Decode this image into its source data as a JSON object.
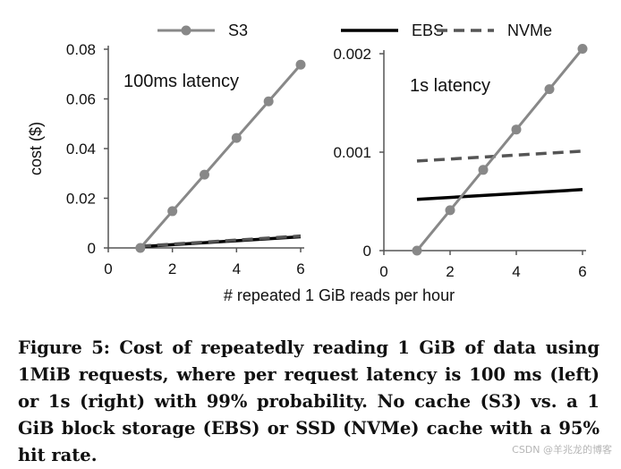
{
  "chart_data": [
    {
      "type": "line",
      "annotation": "100ms latency",
      "xlabel": "# repeated 1 GiB reads per hour",
      "ylabel": "cost ($)",
      "xlim": [
        0,
        6
      ],
      "ylim": [
        0,
        0.08
      ],
      "x_ticks": [
        "0",
        "2",
        "4",
        "6"
      ],
      "y_ticks": [
        "0",
        "0.02",
        "0.04",
        "0.06",
        "0.08"
      ],
      "series": [
        {
          "name": "S3",
          "color": "#888888",
          "style": "solid-marker",
          "x": [
            1,
            2,
            3,
            4,
            5,
            6
          ],
          "y": [
            0,
            0.0148,
            0.0295,
            0.0443,
            0.059,
            0.0738
          ]
        },
        {
          "name": "EBS",
          "color": "#000000",
          "style": "solid",
          "x": [
            1,
            6
          ],
          "y": [
            0.0005,
            0.0045
          ]
        },
        {
          "name": "NVMe",
          "color": "#555555",
          "style": "dashed",
          "x": [
            1,
            6
          ],
          "y": [
            0.0007,
            0.0048
          ]
        }
      ]
    },
    {
      "type": "line",
      "annotation": "1s latency",
      "xlabel": "",
      "ylabel": "",
      "xlim": [
        0,
        6
      ],
      "ylim": [
        0,
        0.002
      ],
      "x_ticks": [
        "0",
        "2",
        "4",
        "6"
      ],
      "y_ticks": [
        "0",
        "0.001",
        "0.002"
      ],
      "series": [
        {
          "name": "S3",
          "color": "#888888",
          "style": "solid-marker",
          "x": [
            1,
            2,
            3,
            4,
            5,
            6
          ],
          "y": [
            0,
            0.00041,
            0.00082,
            0.00123,
            0.00164,
            0.00205
          ]
        },
        {
          "name": "EBS",
          "color": "#000000",
          "style": "solid",
          "x": [
            1,
            6
          ],
          "y": [
            0.00052,
            0.00062
          ]
        },
        {
          "name": "NVMe",
          "color": "#555555",
          "style": "dashed",
          "x": [
            1,
            6
          ],
          "y": [
            0.00091,
            0.00101
          ]
        }
      ]
    }
  ],
  "legend": [
    {
      "label": "S3",
      "color": "#888888",
      "style": "solid-marker"
    },
    {
      "label": "EBS",
      "color": "#000000",
      "style": "solid"
    },
    {
      "label": "NVMe",
      "color": "#555555",
      "style": "dashed"
    }
  ],
  "caption": "Figure 5: Cost of repeatedly reading 1 GiB of data using 1MiB requests, where per request latency is 100 ms (left) or 1s (right) with 99% probability. No cache (S3) vs. a 1 GiB block storage (EBS) or SSD (NVMe) cache with a 95% hit rate.",
  "watermark": "CSDN @羊兆龙的博客"
}
